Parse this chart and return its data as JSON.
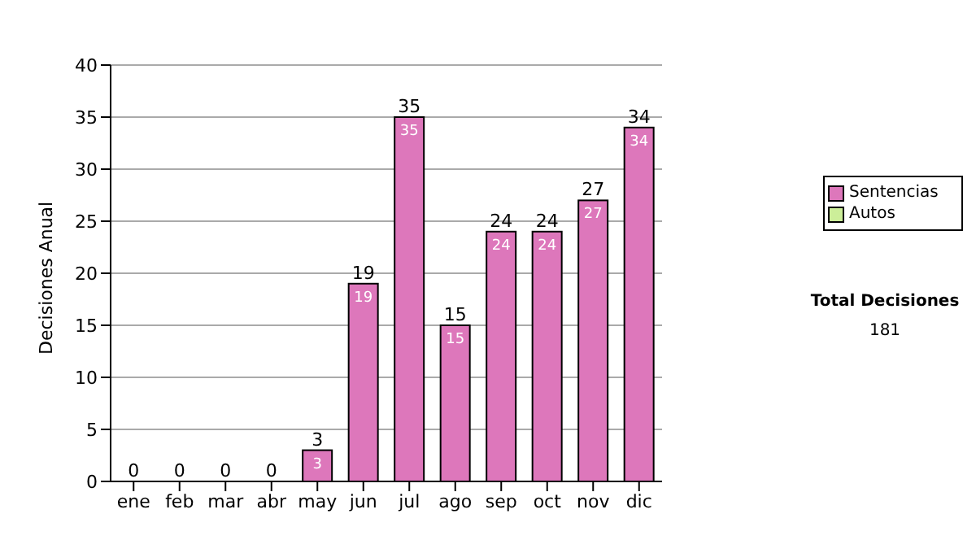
{
  "chart_data": {
    "type": "bar",
    "ylabel": "Decisiones Anual",
    "categories": [
      "ene",
      "feb",
      "mar",
      "abr",
      "may",
      "jun",
      "jul",
      "ago",
      "sep",
      "oct",
      "nov",
      "dic"
    ],
    "series": [
      {
        "name": "Sentencias",
        "color": "#dd77bb",
        "values": [
          0,
          0,
          0,
          0,
          3,
          19,
          35,
          15,
          24,
          24,
          27,
          34
        ],
        "value_labels": [
          null,
          null,
          null,
          null,
          "3",
          "19",
          "35",
          "15",
          "24",
          "24",
          "27",
          "34"
        ]
      },
      {
        "name": "Autos",
        "color": "#ccee99",
        "values": [
          0,
          0,
          0,
          0,
          0,
          0,
          0,
          0,
          0,
          0,
          0,
          0
        ]
      }
    ],
    "stacked": true,
    "totals": [
      "0",
      "0",
      "0",
      "0",
      "3",
      "19",
      "35",
      "15",
      "24",
      "24",
      "27",
      "34"
    ],
    "ylim": [
      0,
      40
    ],
    "yticks": [
      0,
      5,
      10,
      15,
      20,
      25,
      30,
      35,
      40
    ],
    "grid": "y",
    "legend": "right",
    "annotations": [
      "Total Decisiones",
      "181"
    ]
  }
}
